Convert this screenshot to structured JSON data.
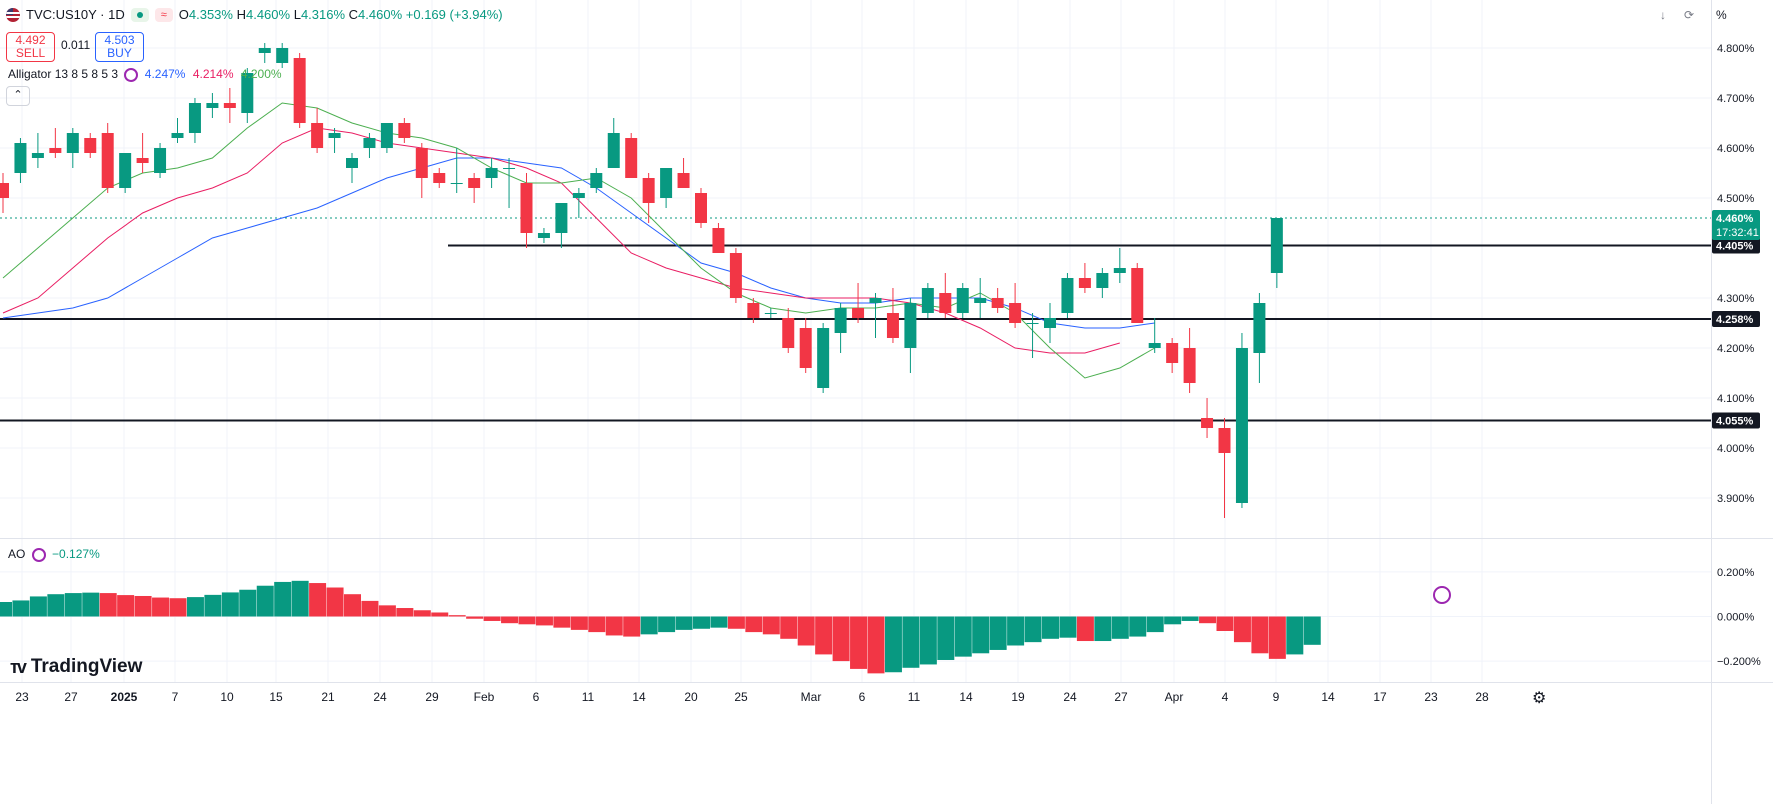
{
  "header": {
    "symbol": "TVC:US10Y · 1D",
    "ohlc": [
      {
        "k": "O",
        "v": "4.353%"
      },
      {
        "k": "H",
        "v": "4.460%"
      },
      {
        "k": "L",
        "v": "4.316%"
      },
      {
        "k": "C",
        "v": "4.460%"
      },
      {
        "k": "",
        "v": "+0.169 (+3.94%)"
      }
    ]
  },
  "trade": {
    "sell_price": "4.492",
    "sell_label": "SELL",
    "spread": "0.011",
    "buy_price": "4.503",
    "buy_label": "BUY"
  },
  "alligator": {
    "name": "Alligator 13 8 5 8 5 3",
    "jaw": "4.247%",
    "teeth": "4.214%",
    "lips": "4.200%"
  },
  "ao_indicator": {
    "name": "AO",
    "value": "−0.127%"
  },
  "axis_unit": "%",
  "logo": "TradingView",
  "colors": {
    "up": "#089981",
    "down": "#f23645",
    "jaw": "#2962ff",
    "teeth": "#e91e63",
    "lips": "#4caf50"
  },
  "chart_data": {
    "type": "candlestick",
    "x_labels": [
      "23",
      "27",
      "2025",
      "7",
      "10",
      "15",
      "21",
      "24",
      "29",
      "Feb",
      "6",
      "11",
      "14",
      "20",
      "25",
      "Mar",
      "6",
      "11",
      "14",
      "19",
      "24",
      "27",
      "Apr",
      "4",
      "9",
      "14",
      "17",
      "23",
      "28"
    ],
    "price_ticks": [
      "4.800%",
      "4.700%",
      "4.600%",
      "4.500%",
      "4.300%",
      "4.200%",
      "4.100%",
      "4.000%",
      "3.900%"
    ],
    "price_range": [
      3.82,
      4.86
    ],
    "ao_ticks": [
      "0.200%",
      "0.000%",
      "−0.200%"
    ],
    "ao_range": [
      -0.26,
      0.36
    ],
    "last_price": {
      "value": 4.46,
      "label": "4.460%",
      "countdown": "17:32:41"
    },
    "levels": [
      {
        "value": 4.405,
        "label": "4.405%"
      },
      {
        "value": 4.258,
        "label": "4.258%"
      },
      {
        "value": 4.055,
        "label": "4.055%"
      }
    ],
    "candles": [
      [
        4.53,
        4.55,
        4.47,
        4.5
      ],
      [
        4.55,
        4.62,
        4.53,
        4.61
      ],
      [
        4.58,
        4.63,
        4.56,
        4.59
      ],
      [
        4.6,
        4.64,
        4.58,
        4.59
      ],
      [
        4.59,
        4.64,
        4.56,
        4.63
      ],
      [
        4.62,
        4.63,
        4.58,
        4.59
      ],
      [
        4.63,
        4.65,
        4.51,
        4.52
      ],
      [
        4.52,
        4.59,
        4.51,
        4.59
      ],
      [
        4.58,
        4.63,
        4.55,
        4.57
      ],
      [
        4.55,
        4.61,
        4.54,
        4.6
      ],
      [
        4.62,
        4.66,
        4.61,
        4.63
      ],
      [
        4.63,
        4.7,
        4.61,
        4.69
      ],
      [
        4.68,
        4.71,
        4.66,
        4.69
      ],
      [
        4.69,
        4.72,
        4.65,
        4.68
      ],
      [
        4.67,
        4.76,
        4.65,
        4.75
      ],
      [
        4.79,
        4.81,
        4.77,
        4.8
      ],
      [
        4.77,
        4.81,
        4.76,
        4.8
      ],
      [
        4.78,
        4.79,
        4.64,
        4.65
      ],
      [
        4.65,
        4.68,
        4.59,
        4.6
      ],
      [
        4.62,
        4.64,
        4.59,
        4.63
      ],
      [
        4.56,
        4.59,
        4.53,
        4.58
      ],
      [
        4.6,
        4.63,
        4.58,
        4.62
      ],
      [
        4.6,
        4.65,
        4.59,
        4.65
      ],
      [
        4.65,
        4.66,
        4.61,
        4.62
      ],
      [
        4.6,
        4.61,
        4.5,
        4.54
      ],
      [
        4.55,
        4.56,
        4.52,
        4.53
      ],
      [
        4.53,
        4.6,
        4.51,
        4.53
      ],
      [
        4.54,
        4.55,
        4.49,
        4.52
      ],
      [
        4.54,
        4.58,
        4.52,
        4.56
      ],
      [
        4.56,
        4.58,
        4.48,
        4.56
      ],
      [
        4.53,
        4.55,
        4.4,
        4.43
      ],
      [
        4.42,
        4.44,
        4.41,
        4.43
      ],
      [
        4.43,
        4.49,
        4.4,
        4.49
      ],
      [
        4.5,
        4.52,
        4.46,
        4.51
      ],
      [
        4.52,
        4.56,
        4.51,
        4.55
      ],
      [
        4.56,
        4.66,
        4.56,
        4.63
      ],
      [
        4.62,
        4.63,
        4.54,
        4.54
      ],
      [
        4.54,
        4.55,
        4.45,
        4.49
      ],
      [
        4.5,
        4.56,
        4.48,
        4.56
      ],
      [
        4.55,
        4.58,
        4.52,
        4.52
      ],
      [
        4.51,
        4.52,
        4.44,
        4.45
      ],
      [
        4.44,
        4.45,
        4.39,
        4.39
      ],
      [
        4.39,
        4.4,
        4.29,
        4.3
      ],
      [
        4.29,
        4.3,
        4.25,
        4.26
      ],
      [
        4.27,
        4.28,
        4.26,
        4.27
      ],
      [
        4.26,
        4.28,
        4.19,
        4.2
      ],
      [
        4.24,
        4.26,
        4.15,
        4.16
      ],
      [
        4.12,
        4.25,
        4.11,
        4.24
      ],
      [
        4.23,
        4.29,
        4.19,
        4.28
      ],
      [
        4.28,
        4.33,
        4.25,
        4.26
      ],
      [
        4.29,
        4.31,
        4.22,
        4.3
      ],
      [
        4.27,
        4.32,
        4.21,
        4.22
      ],
      [
        4.2,
        4.3,
        4.15,
        4.29
      ],
      [
        4.27,
        4.33,
        4.26,
        4.32
      ],
      [
        4.31,
        4.35,
        4.26,
        4.27
      ],
      [
        4.27,
        4.33,
        4.26,
        4.32
      ],
      [
        4.29,
        4.34,
        4.26,
        4.3
      ],
      [
        4.3,
        4.32,
        4.27,
        4.28
      ],
      [
        4.29,
        4.33,
        4.24,
        4.25
      ],
      [
        4.25,
        4.27,
        4.18,
        4.25
      ],
      [
        4.24,
        4.29,
        4.21,
        4.26
      ],
      [
        4.27,
        4.35,
        4.26,
        4.34
      ],
      [
        4.34,
        4.37,
        4.31,
        4.32
      ],
      [
        4.32,
        4.36,
        4.3,
        4.35
      ],
      [
        4.35,
        4.4,
        4.33,
        4.36
      ],
      [
        4.36,
        4.37,
        4.25,
        4.25
      ],
      [
        4.2,
        4.26,
        4.19,
        4.21
      ],
      [
        4.21,
        4.22,
        4.15,
        4.17
      ],
      [
        4.2,
        4.24,
        4.11,
        4.13
      ],
      [
        4.06,
        4.1,
        4.02,
        4.04
      ],
      [
        4.04,
        4.06,
        3.86,
        3.99
      ],
      [
        3.89,
        4.23,
        3.88,
        4.2
      ],
      [
        4.19,
        4.31,
        4.13,
        4.29
      ],
      [
        4.35,
        4.46,
        4.32,
        4.46
      ]
    ],
    "alligator_lines": {
      "jaw": [
        4.26,
        4.27,
        4.28,
        4.3,
        4.34,
        4.38,
        4.42,
        4.44,
        4.46,
        4.48,
        4.51,
        4.54,
        4.56,
        4.58,
        4.58,
        4.57,
        4.56,
        4.52,
        4.47,
        4.42,
        4.37,
        4.35,
        4.32,
        4.3,
        4.29,
        4.29,
        4.3,
        4.3,
        4.3,
        4.28,
        4.25,
        4.24,
        4.24,
        4.25
      ],
      "teeth": [
        4.27,
        4.3,
        4.36,
        4.42,
        4.47,
        4.5,
        4.52,
        4.55,
        4.61,
        4.64,
        4.63,
        4.61,
        4.6,
        4.59,
        4.58,
        4.56,
        4.53,
        4.46,
        4.39,
        4.36,
        4.34,
        4.32,
        4.31,
        4.3,
        4.3,
        4.3,
        4.29,
        4.27,
        4.24,
        4.2,
        4.19,
        4.19,
        4.21
      ],
      "lips": [
        4.34,
        4.4,
        4.46,
        4.52,
        4.55,
        4.56,
        4.58,
        4.64,
        4.69,
        4.68,
        4.65,
        4.63,
        4.62,
        4.6,
        4.56,
        4.53,
        4.53,
        4.54,
        4.5,
        4.43,
        4.36,
        4.31,
        4.28,
        4.27,
        4.28,
        4.28,
        4.29,
        4.28,
        4.31,
        4.27,
        4.2,
        4.14,
        4.16,
        4.2
      ]
    },
    "ao_values": [
      0.065,
      0.072,
      0.09,
      0.1,
      0.105,
      0.107,
      0.105,
      0.096,
      0.092,
      0.085,
      0.082,
      0.087,
      0.097,
      0.108,
      0.12,
      0.138,
      0.155,
      0.16,
      0.15,
      0.13,
      0.1,
      0.07,
      0.05,
      0.038,
      0.028,
      0.018,
      0.006,
      -0.01,
      -0.02,
      -0.03,
      -0.035,
      -0.04,
      -0.05,
      -0.06,
      -0.07,
      -0.085,
      -0.09,
      -0.08,
      -0.07,
      -0.06,
      -0.055,
      -0.05,
      -0.055,
      -0.07,
      -0.08,
      -0.1,
      -0.13,
      -0.17,
      -0.2,
      -0.235,
      -0.255,
      -0.25,
      -0.23,
      -0.215,
      -0.195,
      -0.18,
      -0.165,
      -0.15,
      -0.13,
      -0.115,
      -0.1,
      -0.095,
      -0.11,
      -0.11,
      -0.1,
      -0.09,
      -0.07,
      -0.035,
      -0.02,
      -0.03,
      -0.065,
      -0.115,
      -0.165,
      -0.19,
      -0.17,
      -0.127
    ]
  }
}
